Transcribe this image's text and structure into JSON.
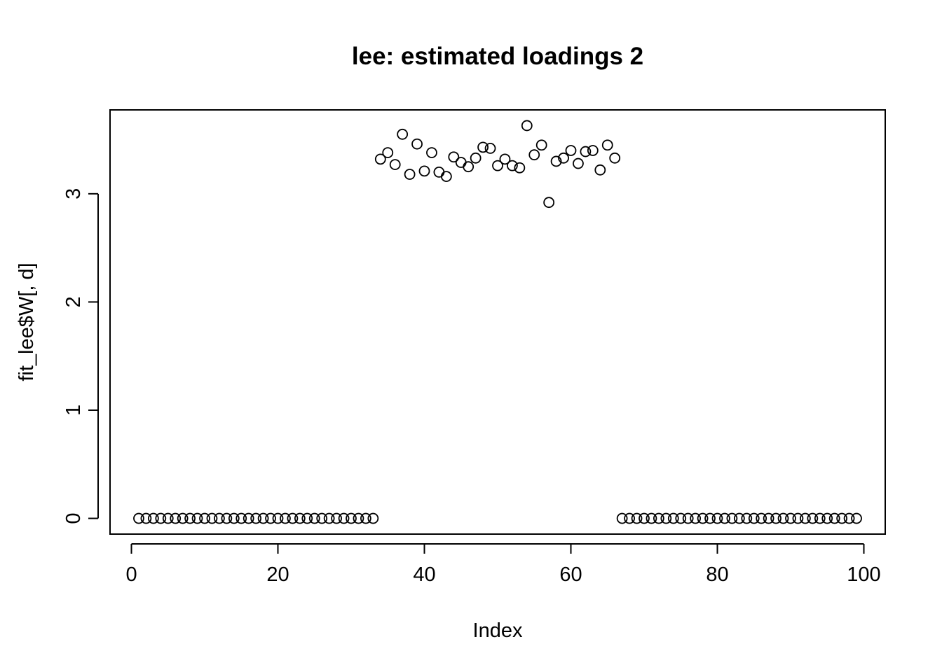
{
  "chart_data": {
    "type": "scatter",
    "title": "lee: estimated loadings 2",
    "xlabel": "Index",
    "ylabel": "fit_lee$W[, d]",
    "xlim": [
      1,
      99
    ],
    "ylim": [
      0,
      3.63
    ],
    "x_ticks": [
      0,
      20,
      40,
      60,
      80,
      100
    ],
    "y_ticks": [
      0,
      1,
      2,
      3
    ],
    "x_tick_labels": [
      "0",
      "20",
      "40",
      "60",
      "80",
      "100"
    ],
    "y_tick_labels": [
      "0",
      "1",
      "2",
      "3"
    ],
    "grid": false,
    "legend": false,
    "marker": "open-circle",
    "marker_color": "#000000",
    "x": [
      1,
      2,
      3,
      4,
      5,
      6,
      7,
      8,
      9,
      10,
      11,
      12,
      13,
      14,
      15,
      16,
      17,
      18,
      19,
      20,
      21,
      22,
      23,
      24,
      25,
      26,
      27,
      28,
      29,
      30,
      31,
      32,
      33,
      34,
      35,
      36,
      37,
      38,
      39,
      40,
      41,
      42,
      43,
      44,
      45,
      46,
      47,
      48,
      49,
      50,
      51,
      52,
      53,
      54,
      55,
      56,
      57,
      58,
      59,
      60,
      61,
      62,
      63,
      64,
      65,
      66,
      67,
      68,
      69,
      70,
      71,
      72,
      73,
      74,
      75,
      76,
      77,
      78,
      79,
      80,
      81,
      82,
      83,
      84,
      85,
      86,
      87,
      88,
      89,
      90,
      91,
      92,
      93,
      94,
      95,
      96,
      97,
      98,
      99
    ],
    "y": [
      0,
      0,
      0,
      0,
      0,
      0,
      0,
      0,
      0,
      0,
      0,
      0,
      0,
      0,
      0,
      0,
      0,
      0,
      0,
      0,
      0,
      0,
      0,
      0,
      0,
      0,
      0,
      0,
      0,
      0,
      0,
      0,
      0,
      3.32,
      3.38,
      3.27,
      3.55,
      3.18,
      3.46,
      3.21,
      3.38,
      3.2,
      3.16,
      3.34,
      3.29,
      3.25,
      3.33,
      3.43,
      3.42,
      3.26,
      3.32,
      3.26,
      3.24,
      3.63,
      3.36,
      3.45,
      2.92,
      3.3,
      3.33,
      3.4,
      3.28,
      3.39,
      3.4,
      3.22,
      3.45,
      3.33,
      0,
      0,
      0,
      0,
      0,
      0,
      0,
      0,
      0,
      0,
      0,
      0,
      0,
      0,
      0,
      0,
      0,
      0,
      0,
      0,
      0,
      0,
      0,
      0,
      0,
      0,
      0,
      0,
      0,
      0,
      0,
      0,
      0
    ]
  }
}
